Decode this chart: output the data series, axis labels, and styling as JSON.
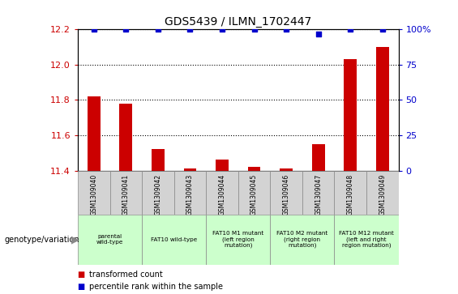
{
  "title": "GDS5439 / ILMN_1702447",
  "samples": [
    "GSM1309040",
    "GSM1309041",
    "GSM1309042",
    "GSM1309043",
    "GSM1309044",
    "GSM1309045",
    "GSM1309046",
    "GSM1309047",
    "GSM1309048",
    "GSM1309049"
  ],
  "bar_values": [
    11.82,
    11.78,
    11.52,
    11.41,
    11.46,
    11.42,
    11.41,
    11.55,
    12.03,
    12.1
  ],
  "percentile_values": [
    100,
    100,
    100,
    100,
    100,
    100,
    100,
    97,
    100,
    100
  ],
  "ylim_left": [
    11.4,
    12.2
  ],
  "ylim_right": [
    0,
    100
  ],
  "yticks_left": [
    11.4,
    11.6,
    11.8,
    12.0,
    12.2
  ],
  "yticks_right": [
    0,
    25,
    50,
    75,
    100
  ],
  "bar_color": "#cc0000",
  "dot_color": "#0000cc",
  "bg_color": "#ffffff",
  "plot_bg": "#ffffff",
  "groups": [
    {
      "label": "parental\nwild-type",
      "start": 0,
      "end": 1,
      "color": "#ccffcc"
    },
    {
      "label": "FAT10 wild-type",
      "start": 2,
      "end": 3,
      "color": "#ccffcc"
    },
    {
      "label": "FAT10 M1 mutant\n(left region\nmutation)",
      "start": 4,
      "end": 5,
      "color": "#ccffcc"
    },
    {
      "label": "FAT10 M2 mutant\n(right region\nmutation)",
      "start": 6,
      "end": 7,
      "color": "#ccffcc"
    },
    {
      "label": "FAT10 M12 mutant\n(left and right\nregion mutation)",
      "start": 8,
      "end": 9,
      "color": "#ccffcc"
    }
  ],
  "genotype_label": "genotype/variation",
  "legend_items": [
    {
      "color": "#cc0000",
      "label": "transformed count"
    },
    {
      "color": "#0000cc",
      "label": "percentile rank within the sample"
    }
  ],
  "tick_label_color": "#cc0000",
  "right_tick_color": "#0000cc",
  "title_fontsize": 10,
  "bar_width": 0.4
}
